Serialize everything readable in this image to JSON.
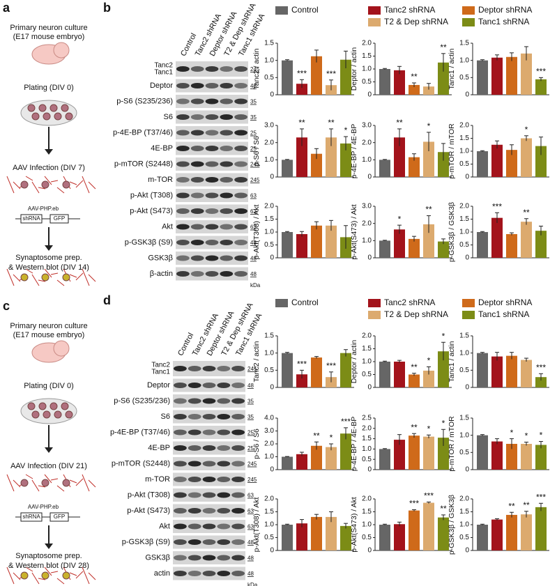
{
  "panel_a": {
    "label": "a",
    "lines": [
      "Primary neuron culture",
      "(E17 mouse embryo)",
      "Plating (DIV 0)",
      "AAV Infection (DIV 7)",
      "AAV-PHP.eb",
      "shRNA",
      "GFP",
      "Synaptosome prep.",
      "& Western blot (DIV 14)"
    ]
  },
  "panel_b": {
    "label": "b",
    "lanes": [
      "Control",
      "Tanc2 shRNA",
      "Deptor shRNA",
      "T2 & Dep shRNA",
      "Tanc1 shRNA"
    ],
    "rows": [
      {
        "labels": [
          "Tanc2",
          "Tanc1"
        ],
        "mw": "245"
      },
      {
        "labels": [
          "Deptor"
        ],
        "mw": "48"
      },
      {
        "labels": [
          "p-S6 (S235/236)"
        ],
        "mw": "35"
      },
      {
        "labels": [
          "S6"
        ],
        "mw": "35"
      },
      {
        "labels": [
          "p-4E-BP (T37/46)"
        ],
        "mw": "25"
      },
      {
        "labels": [
          "4E-BP"
        ],
        "mw": "25"
      },
      {
        "labels": [
          "p-mTOR (S2448)"
        ],
        "mw": "245"
      },
      {
        "labels": [
          "m-TOR"
        ],
        "mw": "245"
      },
      {
        "labels": [
          "p-Akt (T308)"
        ],
        "mw": "63"
      },
      {
        "labels": [
          "p-Akt (S473)"
        ],
        "mw": "63"
      },
      {
        "labels": [
          "Akt"
        ],
        "mw": "63"
      },
      {
        "labels": [
          "p-GSK3β (S9)"
        ],
        "mw": "48"
      },
      {
        "labels": [
          "GSK3β"
        ],
        "mw": "48"
      },
      {
        "labels": [
          "β-actin"
        ],
        "mw": "48"
      }
    ],
    "unit": "kDa",
    "legend": [
      {
        "name": "Control",
        "color": "#666666"
      },
      {
        "name": "Tanc2 shRNA",
        "color": "#a3131b"
      },
      {
        "name": "Deptor shRNA",
        "color": "#cf6a1a"
      },
      {
        "name": "T2 & Dep shRNA",
        "color": "#dcaa6e"
      },
      {
        "name": "Tanc1 shRNA",
        "color": "#7c8c16"
      }
    ],
    "charts": [
      {
        "type": "bar",
        "ylabel": "Tanc2 / actin",
        "ylim": [
          0,
          1.5
        ],
        "yticks": [
          0,
          0.5,
          {
            "value": 1,
            "label": "1.0"
          },
          1.5
        ],
        "values": [
          1.0,
          0.32,
          1.12,
          0.28,
          1.02
        ],
        "errors": [
          0.02,
          0.12,
          0.18,
          0.15,
          0.25
        ],
        "stars": [
          null,
          "***",
          null,
          "***",
          null
        ]
      },
      {
        "type": "bar",
        "ylabel": "Deptor / actin",
        "ylim": [
          0,
          2
        ],
        "yticks": [
          0,
          0.5,
          {
            "value": 1,
            "label": "1.0"
          },
          1.5,
          {
            "value": 2,
            "label": "2.0"
          }
        ],
        "values": [
          1.0,
          0.95,
          0.38,
          0.32,
          1.25
        ],
        "errors": [
          0.02,
          0.15,
          0.08,
          0.12,
          0.35
        ],
        "stars": [
          null,
          null,
          "**",
          null,
          "**"
        ]
      },
      {
        "type": "bar",
        "ylabel": "Tanc1 / actin",
        "ylim": [
          0,
          1.5
        ],
        "yticks": [
          0,
          0.5,
          {
            "value": 1,
            "label": "1.0"
          },
          1.5
        ],
        "values": [
          1.0,
          1.08,
          1.1,
          1.2,
          0.45
        ],
        "errors": [
          0.02,
          0.08,
          0.12,
          0.2,
          0.05
        ],
        "stars": [
          null,
          null,
          null,
          null,
          "***"
        ]
      },
      {
        "type": "bar",
        "ylabel": "p-S6 / S6",
        "ylim": [
          0,
          3
        ],
        "yticks": [
          0,
          {
            "value": 1,
            "label": "1.0"
          },
          {
            "value": 2,
            "label": "2.0"
          },
          {
            "value": 3,
            "label": "3.0"
          }
        ],
        "values": [
          1.0,
          2.3,
          1.35,
          2.3,
          1.95
        ],
        "errors": [
          0.02,
          0.5,
          0.3,
          0.5,
          0.4
        ],
        "stars": [
          null,
          "**",
          null,
          "**",
          "*"
        ]
      },
      {
        "type": "bar",
        "ylabel": "p-4E-BP / 4E-BP",
        "ylim": [
          0,
          3
        ],
        "yticks": [
          0,
          {
            "value": 1,
            "label": "1.0"
          },
          {
            "value": 2,
            "label": "2.0"
          },
          {
            "value": 3,
            "label": "3.0"
          }
        ],
        "values": [
          1.0,
          2.3,
          1.15,
          2.05,
          1.45
        ],
        "errors": [
          0.02,
          0.5,
          0.2,
          0.55,
          0.5
        ],
        "stars": [
          null,
          "**",
          null,
          "*",
          null
        ]
      },
      {
        "type": "bar",
        "ylabel": "p-mTOR / mTOR",
        "ylim": [
          0,
          2
        ],
        "yticks": [
          0,
          0.5,
          {
            "value": 1,
            "label": "1.0"
          },
          1.5,
          {
            "value": 2,
            "label": "2.0"
          }
        ],
        "values": [
          1.0,
          1.25,
          1.05,
          1.5,
          1.2
        ],
        "errors": [
          0.02,
          0.15,
          0.2,
          0.1,
          0.35
        ],
        "stars": [
          null,
          null,
          null,
          "*",
          null
        ]
      },
      {
        "type": "bar",
        "ylabel": "p-Akt(T308) / Akt",
        "ylim": [
          0,
          2
        ],
        "yticks": [
          0,
          0.5,
          {
            "value": 1,
            "label": "1.0"
          },
          1.5,
          {
            "value": 2,
            "label": "2.0"
          }
        ],
        "values": [
          1.0,
          0.92,
          1.25,
          1.25,
          0.8
        ],
        "errors": [
          0.02,
          0.1,
          0.15,
          0.2,
          0.45
        ],
        "stars": [
          null,
          null,
          null,
          null,
          null
        ]
      },
      {
        "type": "bar",
        "ylabel": "p-Akt(S473) / Akt",
        "ylim": [
          0,
          3
        ],
        "yticks": [
          0,
          {
            "value": 1,
            "label": "1.0"
          },
          {
            "value": 2,
            "label": "2.0"
          },
          {
            "value": 3,
            "label": "3.0"
          }
        ],
        "values": [
          1.0,
          1.65,
          1.1,
          1.95,
          0.95
        ],
        "errors": [
          0.02,
          0.25,
          0.15,
          0.5,
          0.15
        ],
        "stars": [
          null,
          "*",
          null,
          "**",
          null
        ]
      },
      {
        "type": "bar",
        "ylabel": "p-GSK3β / GSK3β",
        "ylim": [
          0,
          2
        ],
        "yticks": [
          0,
          0.5,
          {
            "value": 1,
            "label": "1.0"
          },
          1.5,
          {
            "value": 2,
            "label": "2.0"
          }
        ],
        "values": [
          1.0,
          1.55,
          0.92,
          1.4,
          1.05
        ],
        "errors": [
          0.02,
          0.2,
          0.05,
          0.12,
          0.18
        ],
        "stars": [
          null,
          "***",
          null,
          "**",
          null
        ]
      }
    ]
  },
  "panel_c": {
    "label": "c",
    "lines": [
      "Primary neuron culture",
      "(E17 mouse embryo)",
      "Plating (DIV 0)",
      "AAV Infection (DIV 21)",
      "AAV-PHP.eb",
      "shRNA",
      "GFP",
      "Synaptosome prep.",
      "& Western blot (DIV 28)"
    ]
  },
  "panel_d": {
    "label": "d",
    "lanes": [
      "Control",
      "Tanc2 shRNA",
      "Deptor shRNA",
      "T2 & Dep shRNA",
      "Tanc1 shRNA"
    ],
    "rows": [
      {
        "labels": [
          "Tanc2",
          "Tanc1"
        ],
        "mw": "245"
      },
      {
        "labels": [
          "Deptor"
        ],
        "mw": "48"
      },
      {
        "labels": [
          "p-S6 (S235/236)"
        ],
        "mw": "35"
      },
      {
        "labels": [
          "S6"
        ],
        "mw": "35"
      },
      {
        "labels": [
          "p-4E-BP (T37/46)"
        ],
        "mw": "25"
      },
      {
        "labels": [
          "4E-BP"
        ],
        "mw": "25"
      },
      {
        "labels": [
          "p-mTOR (S2448)"
        ],
        "mw": "245"
      },
      {
        "labels": [
          "m-TOR"
        ],
        "mw": "245"
      },
      {
        "labels": [
          "p-Akt (T308)"
        ],
        "mw": "63"
      },
      {
        "labels": [
          "p-Akt (S473)"
        ],
        "mw": "63"
      },
      {
        "labels": [
          "Akt"
        ],
        "mw": "63"
      },
      {
        "labels": [
          "p-GSK3β (S9)"
        ],
        "mw": "48"
      },
      {
        "labels": [
          "GSK3β"
        ],
        "mw": "48"
      },
      {
        "labels": [
          "actin"
        ],
        "mw": "48"
      }
    ],
    "unit": "kDa",
    "legend": [
      {
        "name": "Control",
        "color": "#666666"
      },
      {
        "name": "Tanc2 shRNA",
        "color": "#a3131b"
      },
      {
        "name": "Deptor shRNA",
        "color": "#cf6a1a"
      },
      {
        "name": "T2 & Dep shRNA",
        "color": "#dcaa6e"
      },
      {
        "name": "Tanc1 shRNA",
        "color": "#7c8c16"
      }
    ],
    "charts": [
      {
        "type": "bar",
        "ylabel": "Tanc2 / actin",
        "ylim": [
          0,
          1.5
        ],
        "yticks": [
          0,
          0.5,
          {
            "value": 1,
            "label": "1.0"
          },
          1.5
        ],
        "values": [
          1.0,
          0.38,
          0.87,
          0.3,
          1.0
        ],
        "errors": [
          0.02,
          0.12,
          0.03,
          0.15,
          0.1
        ],
        "stars": [
          null,
          "***",
          null,
          "***",
          null
        ]
      },
      {
        "type": "bar",
        "ylabel": "Deptor / actin",
        "ylim": [
          0,
          2
        ],
        "yticks": [
          0,
          0.5,
          {
            "value": 1,
            "label": "1.0"
          },
          1.5,
          {
            "value": 2,
            "label": "2.0"
          }
        ],
        "values": [
          1.0,
          1.0,
          0.5,
          0.65,
          1.4
        ],
        "errors": [
          0.02,
          0.05,
          0.05,
          0.15,
          0.35
        ],
        "stars": [
          null,
          null,
          "**",
          "*",
          "*"
        ]
      },
      {
        "type": "bar",
        "ylabel": "Tanc1 / actin",
        "ylim": [
          0,
          1.5
        ],
        "yticks": [
          0,
          0.5,
          {
            "value": 1,
            "label": "1.0"
          },
          1.5
        ],
        "values": [
          1.0,
          0.9,
          0.92,
          0.8,
          0.3
        ],
        "errors": [
          0.02,
          0.12,
          0.1,
          0.05,
          0.1
        ],
        "stars": [
          null,
          null,
          null,
          null,
          "***"
        ]
      },
      {
        "type": "bar",
        "ylabel": "p-S6 / S6",
        "ylim": [
          0,
          4
        ],
        "yticks": [
          0,
          {
            "value": 1,
            "label": "1.0"
          },
          {
            "value": 2,
            "label": "2.0"
          },
          {
            "value": 3,
            "label": "3.0"
          },
          {
            "value": 4,
            "label": "4.0"
          }
        ],
        "values": [
          1.0,
          1.2,
          1.85,
          1.75,
          2.8
        ],
        "errors": [
          0.02,
          0.15,
          0.3,
          0.25,
          0.45
        ],
        "stars": [
          null,
          null,
          "**",
          "*",
          "***"
        ]
      },
      {
        "type": "bar",
        "ylabel": "p-4E-BP / 4E-BP",
        "ylim": [
          0,
          2.5
        ],
        "yticks": [
          0,
          0.5,
          {
            "value": 1,
            "label": "1.0"
          },
          1.5,
          {
            "value": 2,
            "label": "2.0"
          },
          2.5
        ],
        "values": [
          1.0,
          1.45,
          1.65,
          1.6,
          1.55
        ],
        "errors": [
          0.02,
          0.25,
          0.1,
          0.08,
          0.4
        ],
        "stars": [
          null,
          null,
          "**",
          "*",
          "*"
        ]
      },
      {
        "type": "bar",
        "ylabel": "p-mTOR / mTOR",
        "ylim": [
          0,
          1.5
        ],
        "yticks": [
          0,
          0.5,
          {
            "value": 1,
            "label": "1.0"
          },
          1.5
        ],
        "values": [
          1.0,
          0.82,
          0.75,
          0.75,
          0.72
        ],
        "errors": [
          0.02,
          0.08,
          0.15,
          0.05,
          0.1
        ],
        "stars": [
          null,
          null,
          "*",
          "*",
          "*"
        ]
      },
      {
        "type": "bar",
        "ylabel": "p-Akt(T308) / Akt",
        "ylim": [
          0,
          2
        ],
        "yticks": [
          0,
          0.5,
          {
            "value": 1,
            "label": "1.0"
          },
          1.5,
          {
            "value": 2,
            "label": "2.0"
          }
        ],
        "values": [
          1.0,
          1.05,
          1.3,
          1.3,
          0.95
        ],
        "errors": [
          0.02,
          0.15,
          0.1,
          0.2,
          0.1
        ],
        "stars": [
          null,
          null,
          null,
          null,
          null
        ]
      },
      {
        "type": "bar",
        "ylabel": "p-Akt(S473) / Akt",
        "ylim": [
          0,
          2
        ],
        "yticks": [
          0,
          0.5,
          {
            "value": 1,
            "label": "1.0"
          },
          1.5,
          {
            "value": 2,
            "label": "2.0"
          }
        ],
        "values": [
          1.0,
          1.02,
          1.55,
          1.85,
          1.28
        ],
        "errors": [
          0.02,
          0.08,
          0.03,
          0.03,
          0.1
        ],
        "stars": [
          null,
          null,
          "***",
          "***",
          "**"
        ]
      },
      {
        "type": "bar",
        "ylabel": "p-GSK3β / GSK3β",
        "ylim": [
          0,
          2
        ],
        "yticks": [
          0,
          0.5,
          {
            "value": 1,
            "label": "1.0"
          },
          1.5,
          {
            "value": 2,
            "label": "2.0"
          }
        ],
        "values": [
          1.0,
          1.2,
          1.38,
          1.4,
          1.68
        ],
        "errors": [
          0.02,
          0.03,
          0.1,
          0.12,
          0.15
        ],
        "stars": [
          null,
          null,
          "**",
          "**",
          "***"
        ]
      }
    ]
  }
}
